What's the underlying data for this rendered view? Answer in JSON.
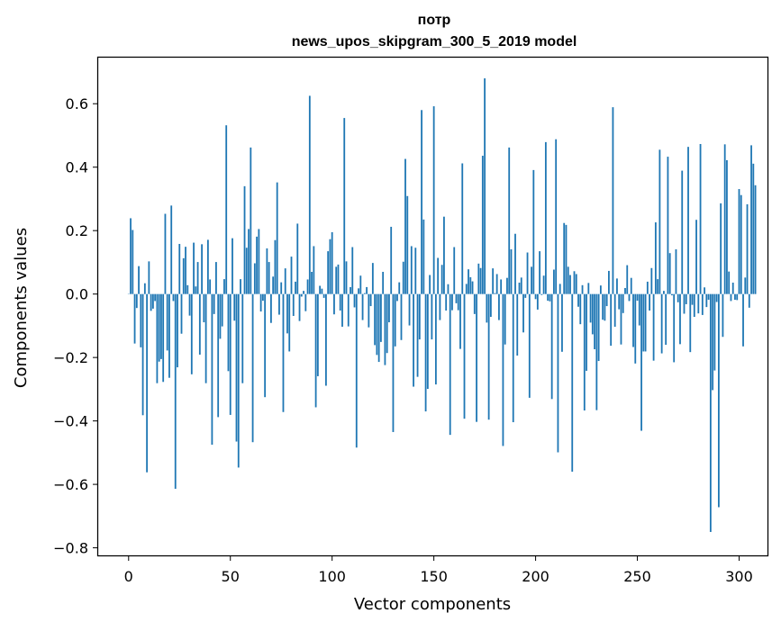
{
  "chart_data": {
    "type": "bar",
    "title_line1": "потр",
    "title_line2": "news_upos_skipgram_300_5_2019 model",
    "xlabel": "Vector components",
    "ylabel": "Components values",
    "xlim": [
      -14.95,
      313.95
    ],
    "ylim": [
      -0.8239,
      0.7454
    ],
    "xticks": [
      0,
      50,
      100,
      150,
      200,
      250,
      300
    ],
    "xtick_labels": [
      "0",
      "50",
      "100",
      "150",
      "200",
      "250",
      "300"
    ],
    "yticks": [
      -0.8,
      -0.6,
      -0.4,
      -0.2,
      0.0,
      0.2,
      0.4,
      0.6
    ],
    "ytick_labels": [
      "−0.8",
      "−0.6",
      "−0.4",
      "−0.2",
      "0.0",
      "0.2",
      "0.4",
      "0.6"
    ],
    "bar_color": "#1f77b4",
    "bar_width": 0.8,
    "grid": false,
    "x_start": 0,
    "values": [
      0.001,
      0.239,
      0.202,
      -0.156,
      -0.044,
      0.088,
      -0.168,
      -0.382,
      0.034,
      -0.562,
      0.103,
      -0.053,
      -0.046,
      -0.022,
      -0.281,
      -0.213,
      -0.205,
      -0.277,
      0.253,
      -0.178,
      -0.264,
      0.279,
      -0.022,
      -0.614,
      -0.231,
      0.158,
      -0.125,
      0.113,
      0.149,
      0.028,
      -0.068,
      -0.253,
      0.162,
      0.024,
      0.101,
      -0.191,
      0.157,
      -0.089,
      -0.281,
      0.171,
      0.046,
      -0.475,
      -0.063,
      0.101,
      -0.388,
      -0.141,
      -0.102,
      0.047,
      0.532,
      -0.243,
      -0.381,
      0.176,
      -0.084,
      -0.465,
      -0.547,
      0.047,
      -0.281,
      0.34,
      0.146,
      0.205,
      0.462,
      -0.467,
      0.097,
      0.181,
      0.205,
      -0.055,
      -0.021,
      -0.325,
      0.144,
      0.101,
      -0.091,
      0.055,
      0.17,
      0.352,
      -0.065,
      0.037,
      -0.372,
      0.081,
      -0.124,
      -0.181,
      0.118,
      -0.069,
      0.039,
      0.222,
      -0.085,
      -0.008,
      0.01,
      -0.054,
      0.046,
      0.625,
      0.07,
      0.151,
      -0.357,
      -0.259,
      0.026,
      0.017,
      -0.012,
      -0.289,
      0.135,
      0.173,
      0.195,
      -0.064,
      0.086,
      0.093,
      -0.052,
      -0.103,
      0.555,
      0.103,
      -0.102,
      0.022,
      0.148,
      -0.042,
      -0.484,
      0.018,
      0.058,
      -0.082,
      0.003,
      0.022,
      -0.105,
      -0.038,
      0.098,
      -0.161,
      -0.192,
      -0.214,
      -0.151,
      0.07,
      -0.224,
      -0.186,
      -0.089,
      0.212,
      -0.435,
      -0.165,
      -0.022,
      0.037,
      -0.145,
      0.102,
      0.426,
      0.309,
      -0.099,
      0.151,
      -0.292,
      0.146,
      -0.261,
      -0.143,
      0.58,
      0.235,
      -0.37,
      -0.299,
      0.06,
      -0.143,
      0.592,
      -0.285,
      0.114,
      -0.082,
      0.092,
      0.244,
      -0.052,
      0.031,
      -0.444,
      -0.051,
      0.148,
      -0.029,
      -0.051,
      -0.173,
      0.412,
      -0.393,
      0.032,
      0.078,
      0.053,
      0.04,
      -0.063,
      -0.403,
      0.096,
      0.082,
      0.436,
      0.68,
      -0.09,
      -0.396,
      -0.072,
      0.081,
      0.003,
      0.063,
      -0.082,
      0.046,
      -0.479,
      -0.159,
      0.051,
      0.462,
      0.141,
      -0.404,
      0.19,
      -0.194,
      0.036,
      0.052,
      -0.121,
      -0.012,
      0.131,
      -0.327,
      0.086,
      0.391,
      -0.016,
      -0.049,
      0.135,
      -0.003,
      0.058,
      0.479,
      -0.021,
      -0.023,
      -0.331,
      0.077,
      0.488,
      -0.499,
      0.032,
      -0.182,
      0.224,
      0.218,
      0.086,
      0.06,
      -0.56,
      0.072,
      0.063,
      -0.04,
      -0.095,
      0.028,
      -0.367,
      -0.242,
      0.035,
      -0.09,
      -0.127,
      -0.174,
      -0.366,
      -0.211,
      0.027,
      -0.081,
      -0.084,
      -0.038,
      0.073,
      -0.163,
      0.589,
      -0.103,
      0.049,
      -0.048,
      -0.159,
      -0.06,
      0.019,
      0.091,
      -0.022,
      0.051,
      -0.167,
      -0.219,
      -0.021,
      -0.099,
      -0.431,
      -0.181,
      -0.181,
      0.039,
      -0.052,
      0.082,
      -0.21,
      0.226,
      0.047,
      0.455,
      -0.187,
      0.01,
      -0.16,
      0.433,
      0.129,
      -0.004,
      -0.215,
      0.141,
      -0.026,
      -0.158,
      0.389,
      -0.062,
      -0.032,
      0.464,
      -0.183,
      -0.034,
      -0.072,
      0.234,
      -0.061,
      0.473,
      -0.066,
      0.021,
      -0.041,
      -0.018,
      -0.75,
      -0.303,
      -0.241,
      -0.025,
      -0.672,
      0.286,
      -0.135,
      0.472,
      0.422,
      0.071,
      -0.022,
      0.036,
      -0.018,
      -0.019,
      0.331,
      0.312,
      -0.165,
      0.052,
      0.283,
      -0.043,
      0.469,
      0.411,
      0.343
    ]
  }
}
